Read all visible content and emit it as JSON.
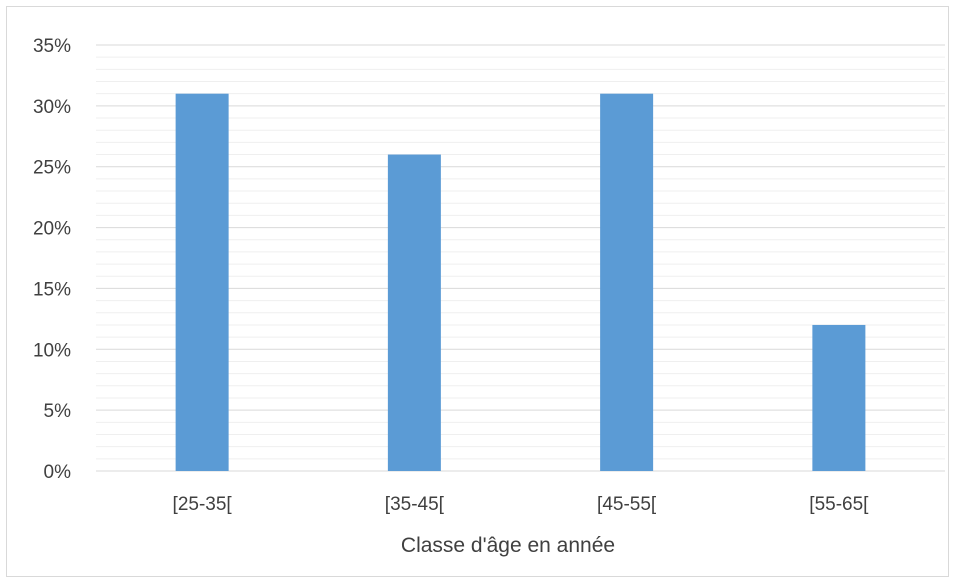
{
  "chart_data": {
    "type": "bar",
    "categories": [
      "[25-35[",
      "[35-45[",
      "[45-55[",
      "[55-65["
    ],
    "values": [
      31,
      26,
      31,
      12
    ],
    "xlabel": "Classe d'âge en année",
    "ylabel": "",
    "ylim": [
      0,
      35
    ],
    "y_ticks": [
      0,
      5,
      10,
      15,
      20,
      25,
      30,
      35
    ],
    "y_tick_suffix": "%",
    "grid": true,
    "minor_grid": true,
    "legend": "none",
    "bar_color": "#5b9bd5",
    "gridline_color": "#d9d9d9",
    "minor_gridline_color": "#efefef",
    "text_color": "#404040"
  }
}
